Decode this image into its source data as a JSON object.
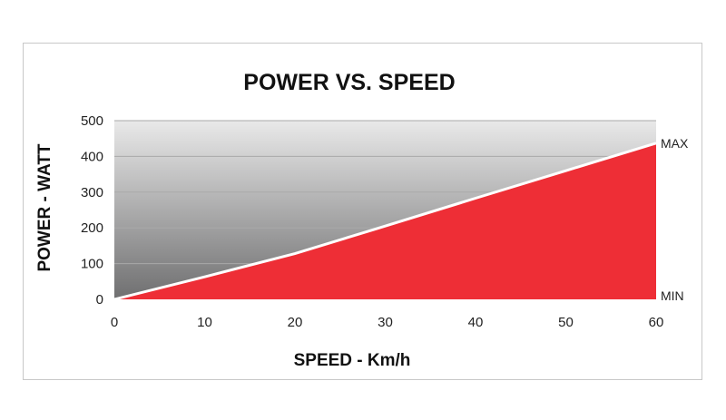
{
  "chart_data": {
    "type": "area",
    "title": "POWER VS. SPEED",
    "xlabel": "SPEED - Km/h",
    "ylabel": "POWER - WATT",
    "xlim": [
      0,
      60
    ],
    "ylim": [
      0,
      500
    ],
    "x_ticks": [
      0,
      10,
      20,
      30,
      40,
      50,
      60
    ],
    "y_ticks": [
      0,
      100,
      200,
      300,
      400,
      500
    ],
    "x": [
      0,
      10,
      20,
      30,
      40,
      50,
      60
    ],
    "values": [
      0,
      63,
      128,
      205,
      283,
      360,
      437
    ],
    "fill_color": "#ee2e36",
    "line_color": "#ffffff",
    "background_gradient": [
      "#e9e9e9",
      "#6f6f70"
    ],
    "grid": true,
    "annotations": [
      {
        "text": "MAX",
        "x": 60,
        "y": 437
      },
      {
        "text": "MIN",
        "x": 60,
        "y": 0
      }
    ]
  }
}
